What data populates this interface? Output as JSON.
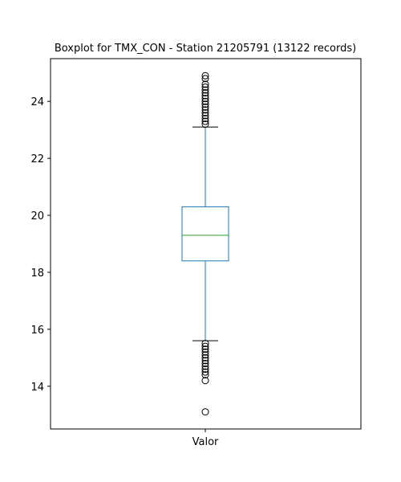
{
  "chart_data": {
    "type": "boxplot",
    "title": "Boxplot for TMX_CON - Station 21205791 (13122 records)",
    "xlabel": "",
    "ylabel": "",
    "categories": [
      "Valor"
    ],
    "ylim": [
      12.5,
      25.5
    ],
    "yticks": [
      "14",
      "16",
      "18",
      "20",
      "22",
      "24"
    ],
    "grid": false,
    "box": {
      "q1": 18.4,
      "median": 19.3,
      "q3": 20.3,
      "whisker_low": 15.6,
      "whisker_high": 23.1,
      "outliers_high": [
        23.2,
        23.3,
        23.4,
        23.5,
        23.6,
        23.7,
        23.8,
        23.9,
        24.0,
        24.1,
        24.2,
        24.3,
        24.4,
        24.5,
        24.6,
        24.8,
        24.9
      ],
      "outliers_low": [
        15.5,
        15.4,
        15.3,
        15.2,
        15.1,
        15.0,
        14.9,
        14.8,
        14.7,
        14.6,
        14.5,
        14.4,
        14.2,
        13.1
      ]
    },
    "colors": {
      "box": "#1f77b4",
      "median": "#2ca02c",
      "caps": "#000000",
      "outliers": "#000000"
    }
  }
}
